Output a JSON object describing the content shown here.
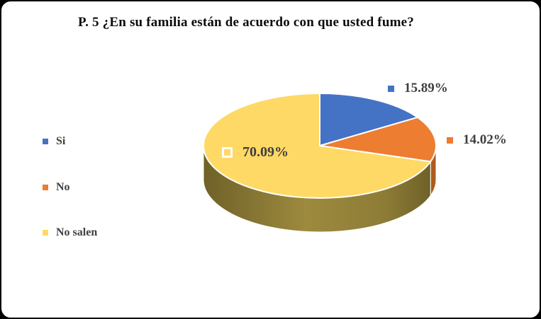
{
  "chart_data": {
    "type": "pie",
    "is_3d": true,
    "title": "P. 5 ¿En su familia están de acuerdo con que usted fume?",
    "direction": "clockwise",
    "start_angle_deg": 0,
    "legend_position": "left",
    "text_color": "#404040",
    "slices": [
      {
        "label": "Si",
        "value": 15.89,
        "display": "15.89%",
        "color": "#4472C4"
      },
      {
        "label": "No",
        "value": 14.02,
        "display": "14.02%",
        "color": "#ED7D31",
        "side_color": "#AE5B1E"
      },
      {
        "label": "No salen",
        "value": 70.09,
        "display": "70.09%",
        "color": "#FFD966",
        "side_gradient": true
      }
    ],
    "rim_gradient_colors": [
      "#6F6128",
      "#9D8A3E",
      "#8D7C36",
      "#6F6128"
    ]
  }
}
